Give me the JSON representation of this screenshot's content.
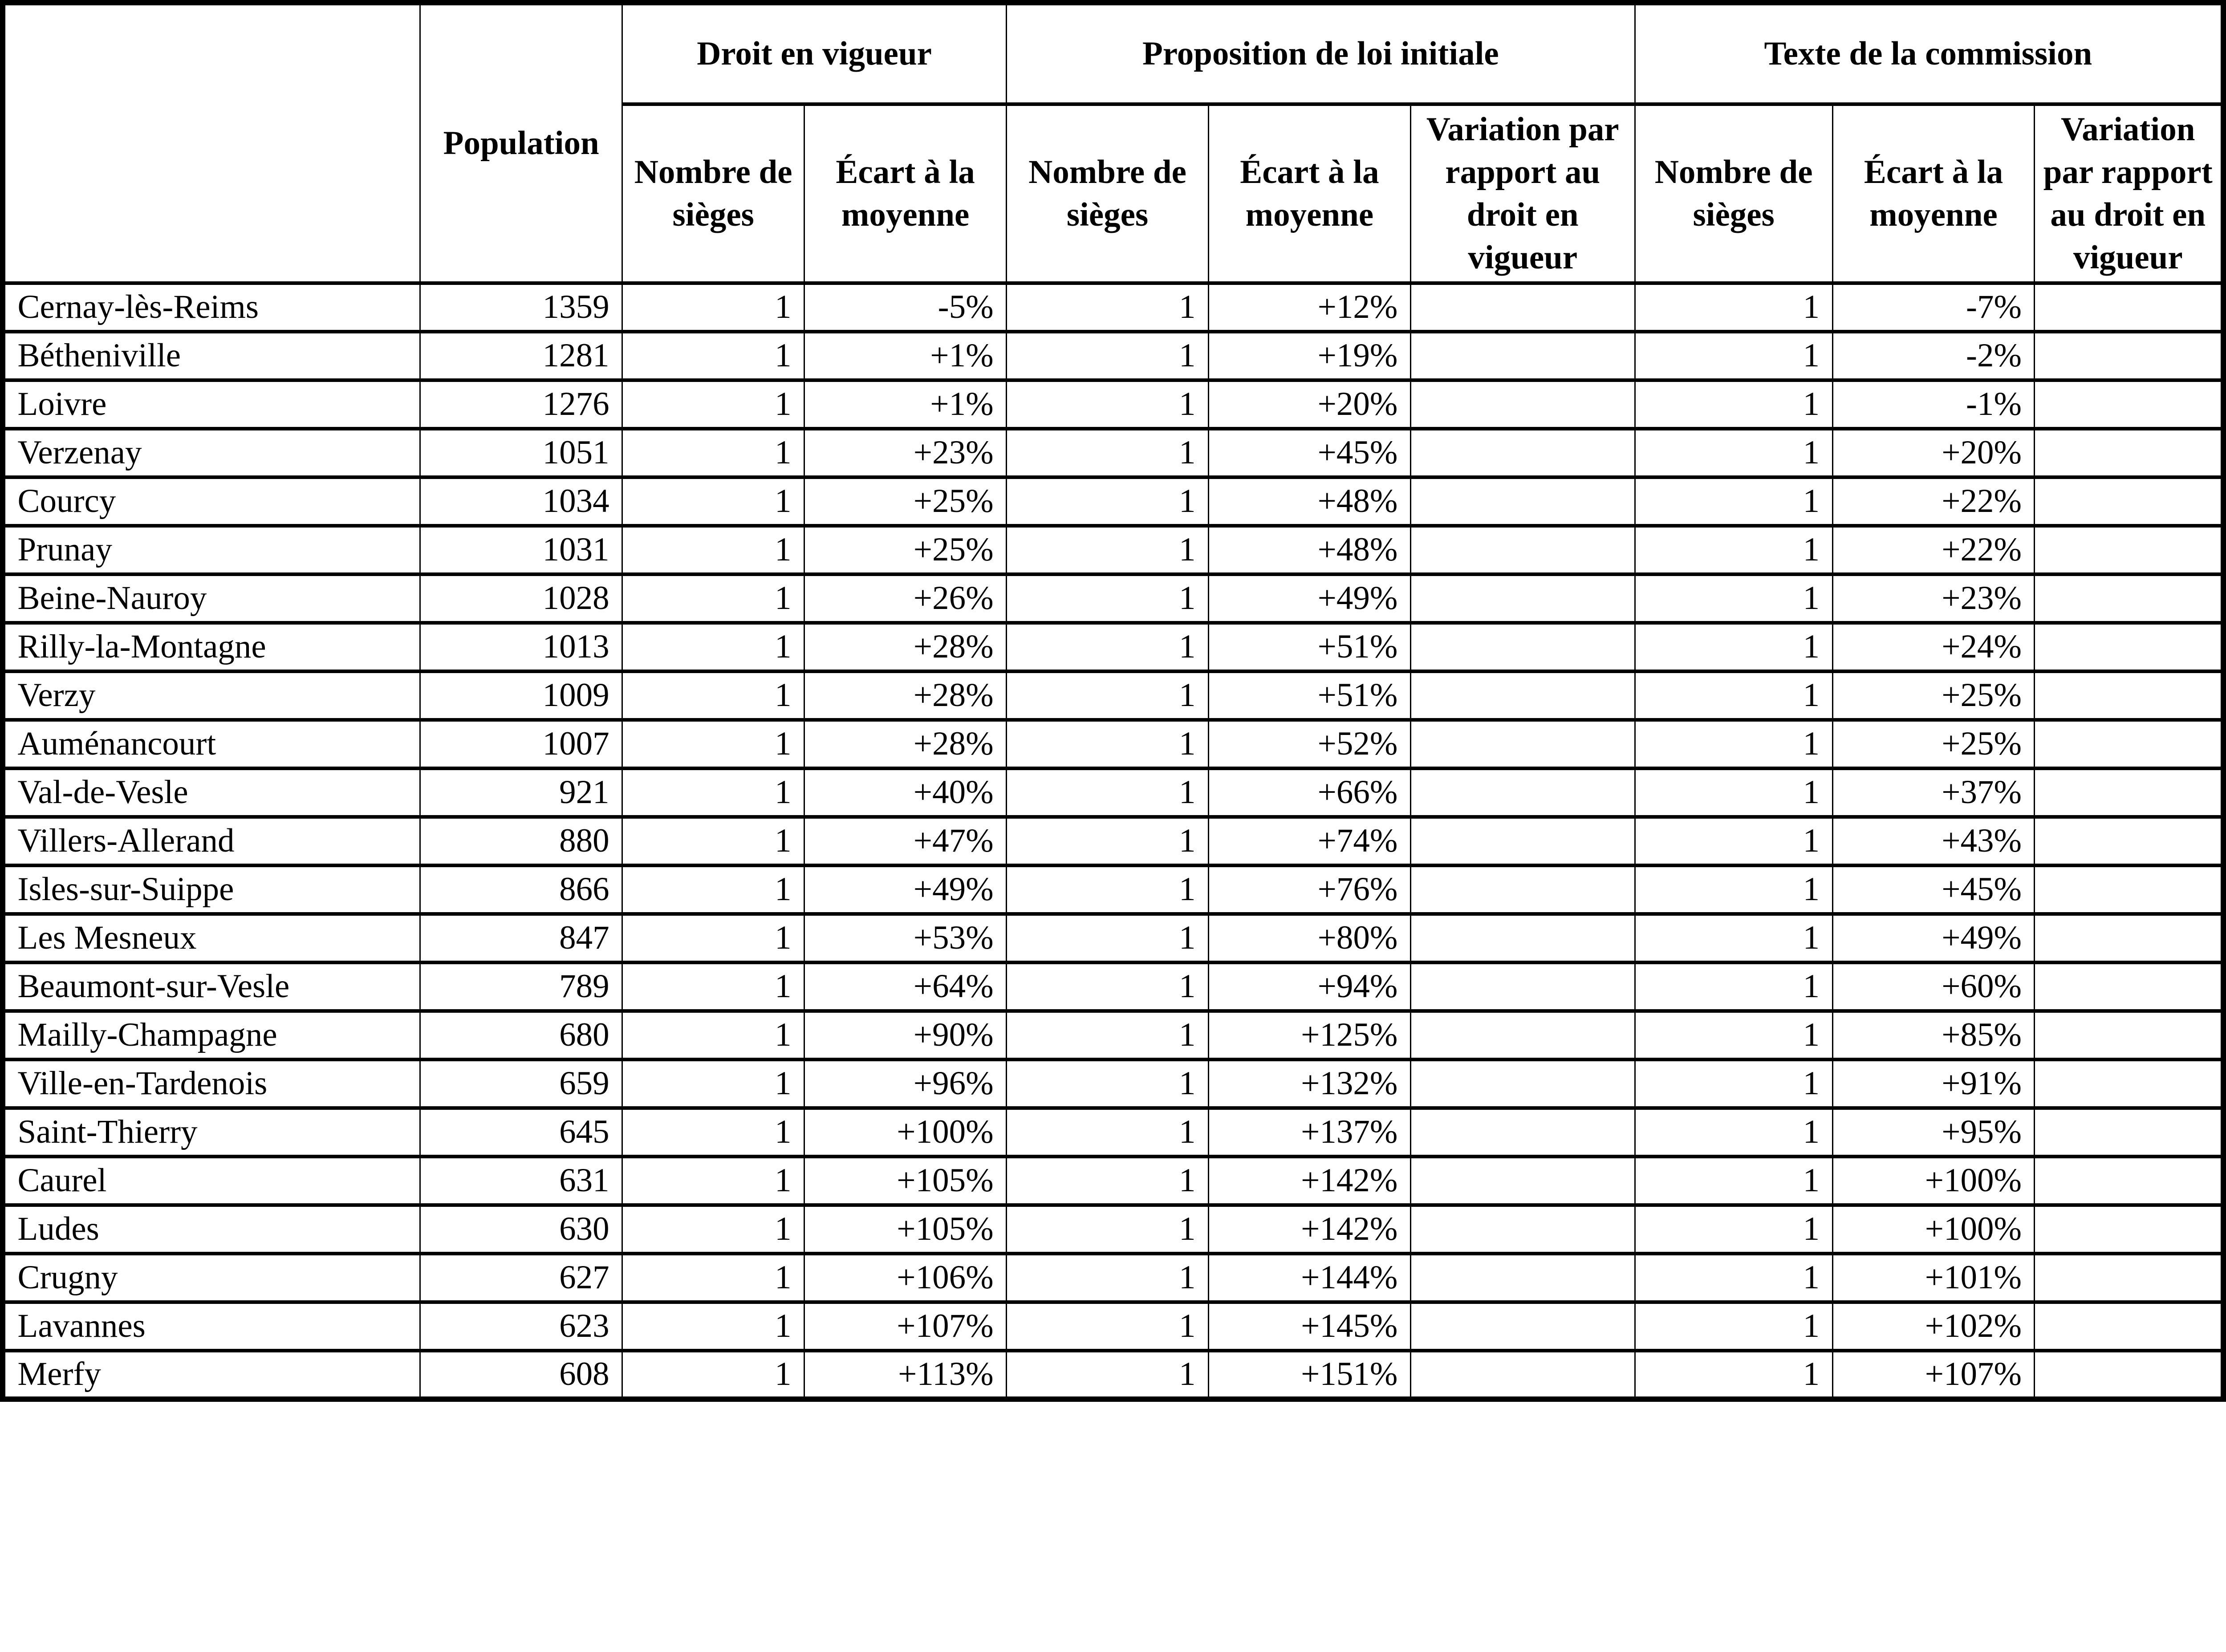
{
  "table": {
    "header": {
      "corner": "",
      "population": "Population",
      "groups": [
        {
          "label": "Droit en vigueur",
          "columns": [
            "Nombre de sièges",
            "Écart à la moyenne"
          ]
        },
        {
          "label": "Proposition de loi initiale",
          "columns": [
            "Nombre de sièges",
            "Écart à la moyenne",
            "Variation par rapport au droit en vigueur"
          ]
        },
        {
          "label": "Texte de la commission",
          "columns": [
            "Nombre de sièges",
            "Écart à la moyenne",
            "Variation par rapport au droit en vigueur"
          ]
        }
      ]
    },
    "rows": [
      {
        "commune": "Cernay-lès-Reims",
        "population": 1359,
        "dv_sieges": 1,
        "dv_ecart": "-5%",
        "pl_sieges": 1,
        "pl_ecart": "+12%",
        "pl_variation": "",
        "tc_sieges": 1,
        "tc_ecart": "-7%",
        "tc_variation": ""
      },
      {
        "commune": "Bétheniville",
        "population": 1281,
        "dv_sieges": 1,
        "dv_ecart": "+1%",
        "pl_sieges": 1,
        "pl_ecart": "+19%",
        "pl_variation": "",
        "tc_sieges": 1,
        "tc_ecart": "-2%",
        "tc_variation": ""
      },
      {
        "commune": "Loivre",
        "population": 1276,
        "dv_sieges": 1,
        "dv_ecart": "+1%",
        "pl_sieges": 1,
        "pl_ecart": "+20%",
        "pl_variation": "",
        "tc_sieges": 1,
        "tc_ecart": "-1%",
        "tc_variation": ""
      },
      {
        "commune": "Verzenay",
        "population": 1051,
        "dv_sieges": 1,
        "dv_ecart": "+23%",
        "pl_sieges": 1,
        "pl_ecart": "+45%",
        "pl_variation": "",
        "tc_sieges": 1,
        "tc_ecart": "+20%",
        "tc_variation": ""
      },
      {
        "commune": "Courcy",
        "population": 1034,
        "dv_sieges": 1,
        "dv_ecart": "+25%",
        "pl_sieges": 1,
        "pl_ecart": "+48%",
        "pl_variation": "",
        "tc_sieges": 1,
        "tc_ecart": "+22%",
        "tc_variation": ""
      },
      {
        "commune": "Prunay",
        "population": 1031,
        "dv_sieges": 1,
        "dv_ecart": "+25%",
        "pl_sieges": 1,
        "pl_ecart": "+48%",
        "pl_variation": "",
        "tc_sieges": 1,
        "tc_ecart": "+22%",
        "tc_variation": ""
      },
      {
        "commune": "Beine-Nauroy",
        "population": 1028,
        "dv_sieges": 1,
        "dv_ecart": "+26%",
        "pl_sieges": 1,
        "pl_ecart": "+49%",
        "pl_variation": "",
        "tc_sieges": 1,
        "tc_ecart": "+23%",
        "tc_variation": ""
      },
      {
        "commune": "Rilly-la-Montagne",
        "population": 1013,
        "dv_sieges": 1,
        "dv_ecart": "+28%",
        "pl_sieges": 1,
        "pl_ecart": "+51%",
        "pl_variation": "",
        "tc_sieges": 1,
        "tc_ecart": "+24%",
        "tc_variation": ""
      },
      {
        "commune": "Verzy",
        "population": 1009,
        "dv_sieges": 1,
        "dv_ecart": "+28%",
        "pl_sieges": 1,
        "pl_ecart": "+51%",
        "pl_variation": "",
        "tc_sieges": 1,
        "tc_ecart": "+25%",
        "tc_variation": ""
      },
      {
        "commune": "Auménancourt",
        "population": 1007,
        "dv_sieges": 1,
        "dv_ecart": "+28%",
        "pl_sieges": 1,
        "pl_ecart": "+52%",
        "pl_variation": "",
        "tc_sieges": 1,
        "tc_ecart": "+25%",
        "tc_variation": ""
      },
      {
        "commune": "Val-de-Vesle",
        "population": 921,
        "dv_sieges": 1,
        "dv_ecart": "+40%",
        "pl_sieges": 1,
        "pl_ecart": "+66%",
        "pl_variation": "",
        "tc_sieges": 1,
        "tc_ecart": "+37%",
        "tc_variation": ""
      },
      {
        "commune": "Villers-Allerand",
        "population": 880,
        "dv_sieges": 1,
        "dv_ecart": "+47%",
        "pl_sieges": 1,
        "pl_ecart": "+74%",
        "pl_variation": "",
        "tc_sieges": 1,
        "tc_ecart": "+43%",
        "tc_variation": ""
      },
      {
        "commune": "Isles-sur-Suippe",
        "population": 866,
        "dv_sieges": 1,
        "dv_ecart": "+49%",
        "pl_sieges": 1,
        "pl_ecart": "+76%",
        "pl_variation": "",
        "tc_sieges": 1,
        "tc_ecart": "+45%",
        "tc_variation": ""
      },
      {
        "commune": "Les Mesneux",
        "population": 847,
        "dv_sieges": 1,
        "dv_ecart": "+53%",
        "pl_sieges": 1,
        "pl_ecart": "+80%",
        "pl_variation": "",
        "tc_sieges": 1,
        "tc_ecart": "+49%",
        "tc_variation": ""
      },
      {
        "commune": "Beaumont-sur-Vesle",
        "population": 789,
        "dv_sieges": 1,
        "dv_ecart": "+64%",
        "pl_sieges": 1,
        "pl_ecart": "+94%",
        "pl_variation": "",
        "tc_sieges": 1,
        "tc_ecart": "+60%",
        "tc_variation": ""
      },
      {
        "commune": "Mailly-Champagne",
        "population": 680,
        "dv_sieges": 1,
        "dv_ecart": "+90%",
        "pl_sieges": 1,
        "pl_ecart": "+125%",
        "pl_variation": "",
        "tc_sieges": 1,
        "tc_ecart": "+85%",
        "tc_variation": ""
      },
      {
        "commune": "Ville-en-Tardenois",
        "population": 659,
        "dv_sieges": 1,
        "dv_ecart": "+96%",
        "pl_sieges": 1,
        "pl_ecart": "+132%",
        "pl_variation": "",
        "tc_sieges": 1,
        "tc_ecart": "+91%",
        "tc_variation": ""
      },
      {
        "commune": "Saint-Thierry",
        "population": 645,
        "dv_sieges": 1,
        "dv_ecart": "+100%",
        "pl_sieges": 1,
        "pl_ecart": "+137%",
        "pl_variation": "",
        "tc_sieges": 1,
        "tc_ecart": "+95%",
        "tc_variation": ""
      },
      {
        "commune": "Caurel",
        "population": 631,
        "dv_sieges": 1,
        "dv_ecart": "+105%",
        "pl_sieges": 1,
        "pl_ecart": "+142%",
        "pl_variation": "",
        "tc_sieges": 1,
        "tc_ecart": "+100%",
        "tc_variation": ""
      },
      {
        "commune": "Ludes",
        "population": 630,
        "dv_sieges": 1,
        "dv_ecart": "+105%",
        "pl_sieges": 1,
        "pl_ecart": "+142%",
        "pl_variation": "",
        "tc_sieges": 1,
        "tc_ecart": "+100%",
        "tc_variation": ""
      },
      {
        "commune": "Crugny",
        "population": 627,
        "dv_sieges": 1,
        "dv_ecart": "+106%",
        "pl_sieges": 1,
        "pl_ecart": "+144%",
        "pl_variation": "",
        "tc_sieges": 1,
        "tc_ecart": "+101%",
        "tc_variation": ""
      },
      {
        "commune": "Lavannes",
        "population": 623,
        "dv_sieges": 1,
        "dv_ecart": "+107%",
        "pl_sieges": 1,
        "pl_ecart": "+145%",
        "pl_variation": "",
        "tc_sieges": 1,
        "tc_ecart": "+102%",
        "tc_variation": ""
      },
      {
        "commune": "Merfy",
        "population": 608,
        "dv_sieges": 1,
        "dv_ecart": "+113%",
        "pl_sieges": 1,
        "pl_ecart": "+151%",
        "pl_variation": "",
        "tc_sieges": 1,
        "tc_ecart": "+107%",
        "tc_variation": ""
      }
    ]
  }
}
